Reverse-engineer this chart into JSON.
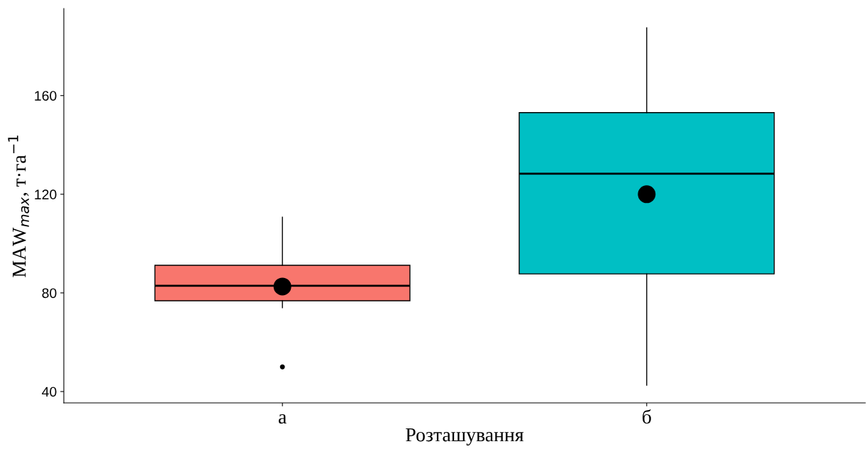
{
  "chart_data": {
    "type": "box",
    "xlabel": "Розташування",
    "ylabel": "MAW$_{max}$, т·га$^{−1}$",
    "categories": [
      "а",
      "б"
    ],
    "colors": [
      "#f8766d",
      "#00bfc4"
    ],
    "boxes": [
      {
        "low": 74.0,
        "q1": 76.8,
        "median": 82.9,
        "q3": 91.2,
        "high": 110.7,
        "mean": 82.6,
        "outliers": [
          50.0
        ]
      },
      {
        "low": 42.6,
        "q1": 87.7,
        "median": 128.3,
        "q3": 153.1,
        "high": 187.5,
        "mean": 120.0
      }
    ],
    "ylim": [
      35.4,
      195.3
    ],
    "yticks": [
      40,
      80,
      120,
      160
    ],
    "grid": false
  }
}
